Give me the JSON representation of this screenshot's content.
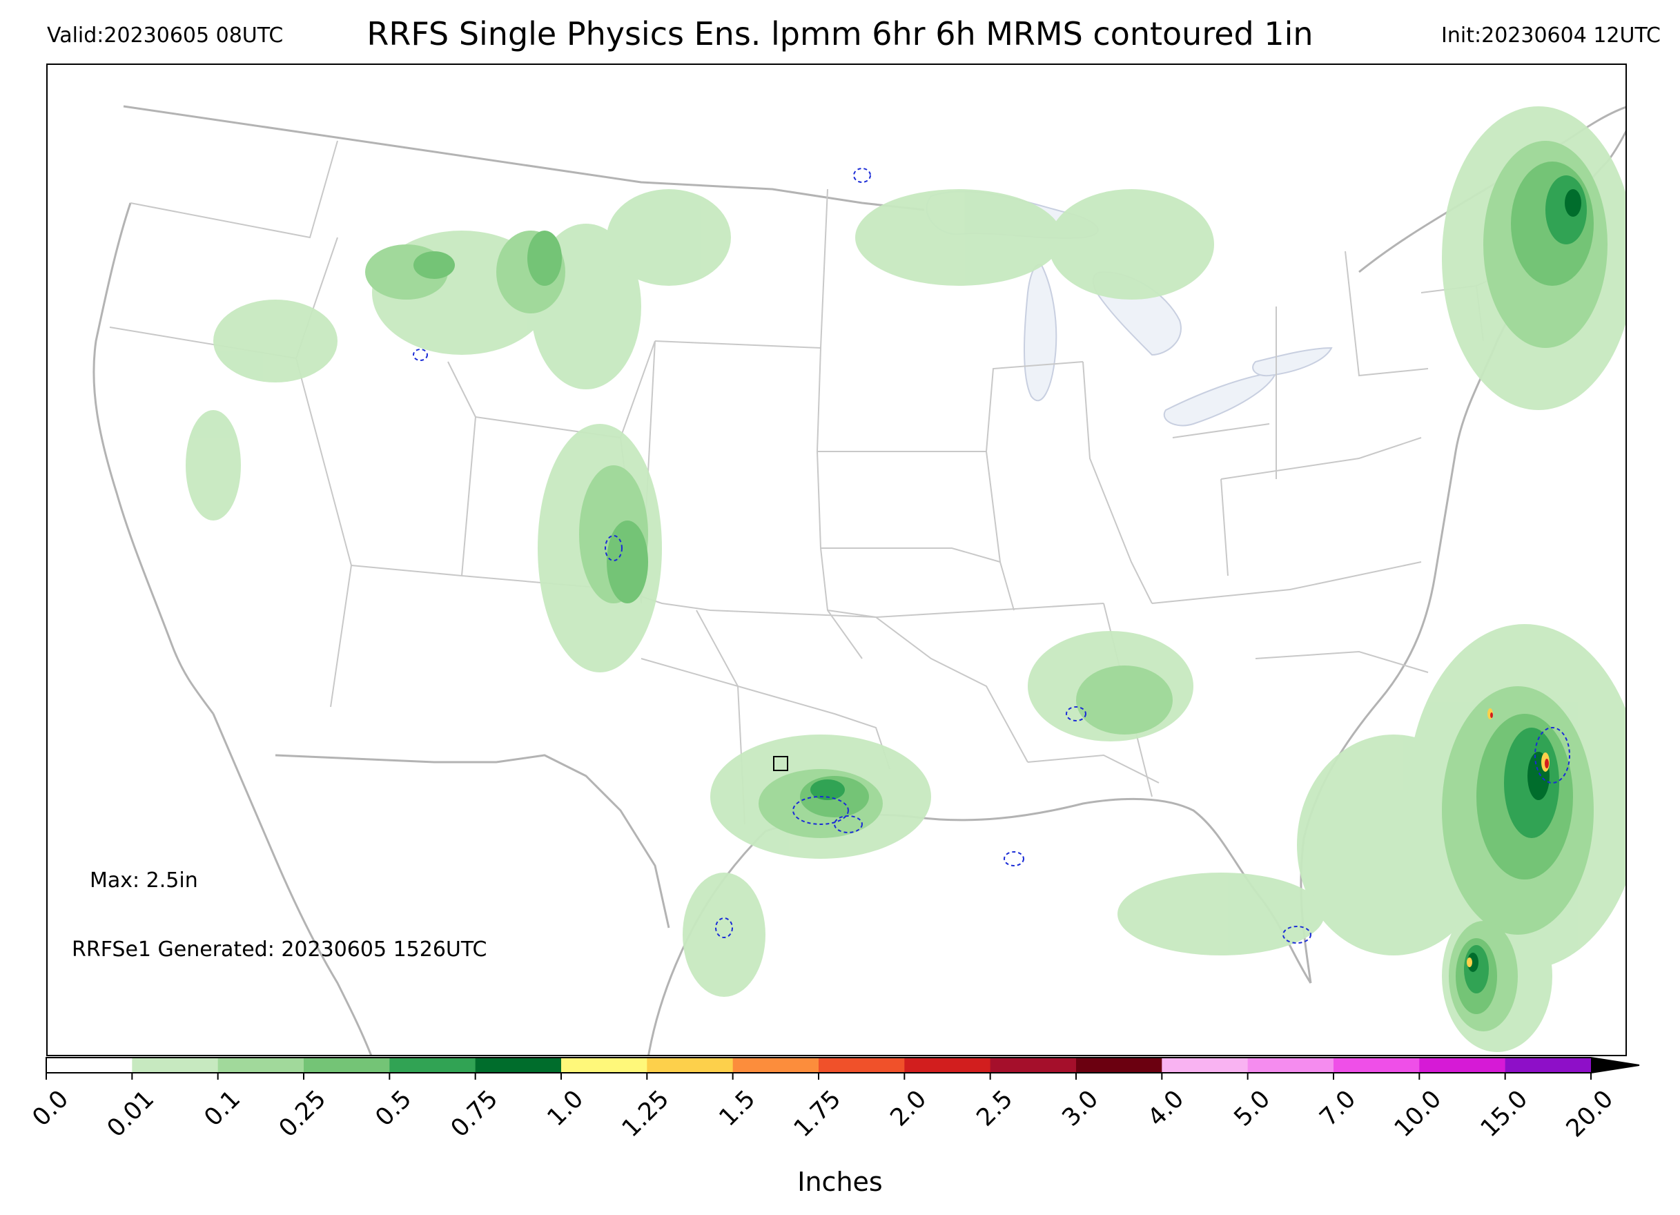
{
  "header": {
    "valid": "Valid:20230605 08UTC",
    "title": "RRFS Single Physics Ens. lpmm 6hr 6h MRMS contoured 1in",
    "init": "Init:20230604 12UTC"
  },
  "notes": {
    "max": "Max: 2.5in",
    "generated": "RRFSe1 Generated: 20230605 1526UTC"
  },
  "colorbar": {
    "label": "Inches",
    "ticks": [
      "0.0",
      "0.01",
      "0.1",
      "0.25",
      "0.5",
      "0.75",
      "1.0",
      "1.25",
      "1.5",
      "1.75",
      "2.0",
      "2.5",
      "3.0",
      "4.0",
      "5.0",
      "7.0",
      "10.0",
      "15.0",
      "20.0"
    ],
    "colors": [
      "#ffffff",
      "#c7e9c0",
      "#a1d99b",
      "#74c476",
      "#31a354",
      "#006d2c",
      "#fff87a",
      "#fdd04b",
      "#fc8d3c",
      "#f0512a",
      "#d21e1e",
      "#a50f2b",
      "#6b0010",
      "#f9b3f2",
      "#f58cef",
      "#ef4fe8",
      "#d61ad6",
      "#8e0fc8"
    ],
    "extend_color": "#000000"
  },
  "legend_contour": {
    "color": "#1a2bd6",
    "threshold": "1in"
  },
  "map": {
    "lake_color": "#eef2f8",
    "boundary_color": "#b3b3b3"
  }
}
